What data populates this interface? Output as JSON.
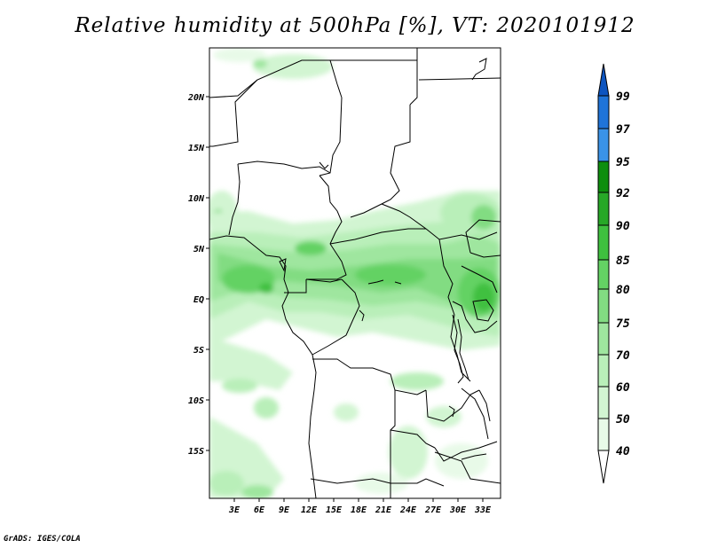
{
  "title": "Relative humidity at 500hPa [%], VT: 2020101912",
  "credit": "GrADS: IGES/COLA",
  "map": {
    "lat_ticks": [
      "20N",
      "15N",
      "10N",
      "5N",
      "EQ",
      "5S",
      "10S",
      "15S"
    ],
    "lon_ticks": [
      "3E",
      "6E",
      "9E",
      "12E",
      "15E",
      "18E",
      "21E",
      "24E",
      "27E",
      "30E",
      "33E"
    ]
  },
  "colorbar": {
    "labels": [
      "99",
      "97",
      "95",
      "92",
      "90",
      "85",
      "80",
      "75",
      "70",
      "60",
      "50",
      "40"
    ],
    "colors": {
      "c40": "#e8fae8",
      "c50": "#d2f5d2",
      "c60": "#b9efb9",
      "c70": "#9fe69f",
      "c75": "#82dc82",
      "c80": "#64d264",
      "c85": "#3fc03f",
      "c90": "#27a827",
      "c92": "#0e8e0e",
      "c95": "#3a93e8",
      "c97": "#1f74d8",
      "c99": "#0d55c0"
    }
  }
}
